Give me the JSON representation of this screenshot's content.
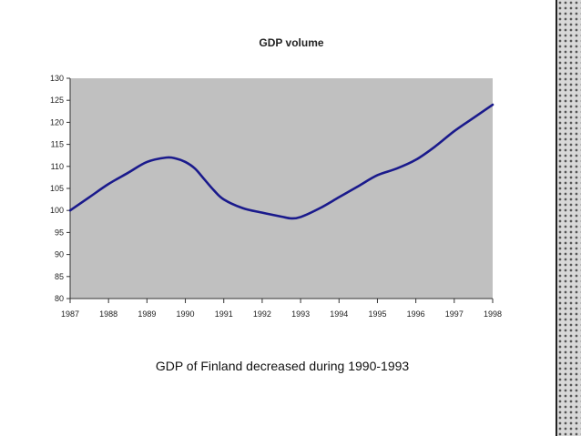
{
  "chart_data": {
    "type": "line",
    "title": "GDP volume",
    "xlabel": "",
    "ylabel": "",
    "xlim": [
      1987,
      1998
    ],
    "ylim": [
      80,
      130
    ],
    "x_ticks": [
      "1987",
      "1988",
      "1989",
      "1990",
      "1991",
      "1992",
      "1993",
      "1994",
      "1995",
      "1996",
      "1997",
      "1998"
    ],
    "y_ticks": [
      "80",
      "85",
      "90",
      "95",
      "100",
      "105",
      "110",
      "115",
      "120",
      "125",
      "130"
    ],
    "grid": false,
    "colors": {
      "plot_background": "#c0c0c0",
      "line": "#1a1a8c"
    },
    "series": [
      {
        "x": [
          1987,
          1987.5,
          1988,
          1988.5,
          1989,
          1989.5,
          1989.75,
          1990,
          1990.25,
          1990.5,
          1990.75,
          1991,
          1991.5,
          1992,
          1992.5,
          1992.75,
          1993,
          1993.5,
          1994,
          1994.5,
          1995,
          1995.5,
          1996,
          1996.5,
          1997,
          1997.5,
          1998
        ],
        "values": [
          100,
          103,
          106,
          108.5,
          111,
          112,
          111.8,
          111,
          109.5,
          107,
          104.5,
          102.5,
          100.5,
          99.5,
          98.6,
          98.2,
          98.5,
          100.5,
          103,
          105.5,
          108,
          109.5,
          111.5,
          114.5,
          118,
          121,
          124
        ]
      }
    ]
  },
  "caption": "GDP of Finland decreased during 1990-1993"
}
